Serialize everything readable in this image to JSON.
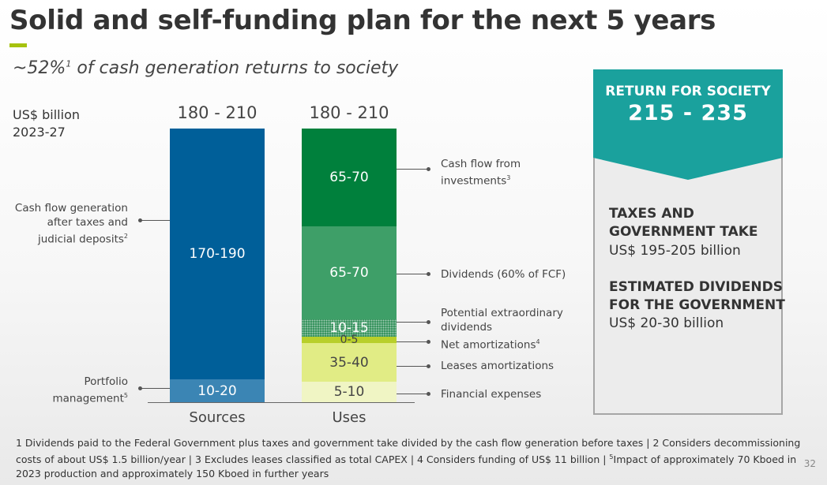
{
  "title": "Solid and self-funding plan for the next 5 years",
  "subtitle": {
    "prefix": "~52%",
    "sup": "1",
    "suffix": " of cash generation returns to society"
  },
  "unit_label": {
    "line1": "US$ billion",
    "line2": "2023-27"
  },
  "colors": {
    "accent": "#a6c20e",
    "sources_main": "#005f99",
    "sources_portfolio": "#3b85b4",
    "uses_investments": "#00803c",
    "uses_dividends": "#3e9f68",
    "uses_extraordinary": "#2f8f58",
    "uses_net_amortizations": "#b8cf2a",
    "uses_leases": "#e1ec85",
    "uses_financial": "#f0f5c4",
    "teal": "#1aa19d"
  },
  "chart_data": {
    "type": "bar",
    "stacked": true,
    "unit": "US$ billion, 2023-27",
    "categories": [
      "Sources",
      "Uses"
    ],
    "totals": [
      "180 - 210",
      "180 - 210"
    ],
    "series": [
      {
        "category": "Sources",
        "segments": [
          {
            "key": "portfolio",
            "label": "10-20",
            "low": 10,
            "high": 20,
            "description": "Portfolio management",
            "sup": "5"
          },
          {
            "key": "cash_flow_generation",
            "label": "170-190",
            "low": 170,
            "high": 190,
            "description": "Cash flow generation after taxes and judicial deposits",
            "sup": "2"
          }
        ]
      },
      {
        "category": "Uses",
        "segments": [
          {
            "key": "financial",
            "label": "5-10",
            "low": 5,
            "high": 10,
            "description": "Financial expenses"
          },
          {
            "key": "leases",
            "label": "35-40",
            "low": 35,
            "high": 40,
            "description": "Leases amortizations"
          },
          {
            "key": "net_amortizations",
            "label": "0-5",
            "low": 0,
            "high": 5,
            "description": "Net amortizations",
            "sup": "4"
          },
          {
            "key": "extraordinary",
            "label": "10-15",
            "low": 10,
            "high": 15,
            "description": "Potential extraordinary dividends"
          },
          {
            "key": "dividends",
            "label": "65-70",
            "low": 65,
            "high": 70,
            "description": "Dividends (60% of FCF)"
          },
          {
            "key": "investments",
            "label": "65-70",
            "low": 65,
            "high": 70,
            "description": "Cash flow from investments",
            "sup": "3"
          }
        ]
      }
    ]
  },
  "annotations": {
    "cash_flow_generation": {
      "line1": "Cash flow generation",
      "line2": "after taxes and",
      "line3": "judicial deposits",
      "sup": "2"
    },
    "portfolio": {
      "line1": "Portfolio",
      "line2": "management",
      "sup": "5"
    },
    "investments": {
      "line1": "Cash flow from",
      "line2": "investments",
      "sup": "3"
    },
    "dividends": {
      "line1": "Dividends (60% of FCF)"
    },
    "extraordinary": {
      "line1": "Potential extraordinary",
      "line2": "dividends"
    },
    "net_amortizations": {
      "line1": "Net amortizations",
      "sup": "4"
    },
    "leases": {
      "line1": "Leases amortizations"
    },
    "financial": {
      "line1": "Financial expenses"
    }
  },
  "return_card": {
    "title": "RETURN FOR SOCIETY",
    "range": "215 - 235",
    "taxes_heading_1": "TAXES AND",
    "taxes_heading_2": "GOVERNMENT TAKE",
    "taxes_value": "US$ 195-205 billion",
    "dividends_heading_1": "ESTIMATED DIVIDENDS",
    "dividends_heading_2": "FOR THE GOVERNMENT",
    "dividends_value": "US$ 20-30 billion"
  },
  "footnote": {
    "part1": "1 Dividends paid to the Federal Government plus taxes and government take divided by the cash flow generation before taxes | 2 Considers decommissioning costs of about US$ 1.5 billion/year | 3 Excludes leases classified as total CAPEX | 4 Considers funding of US$ 11 billion | ",
    "sup": "5",
    "part2": "Impact of approximately 70 Kboed in 2023 production and approximately 150 Kboed in further years"
  },
  "page_number": "32"
}
